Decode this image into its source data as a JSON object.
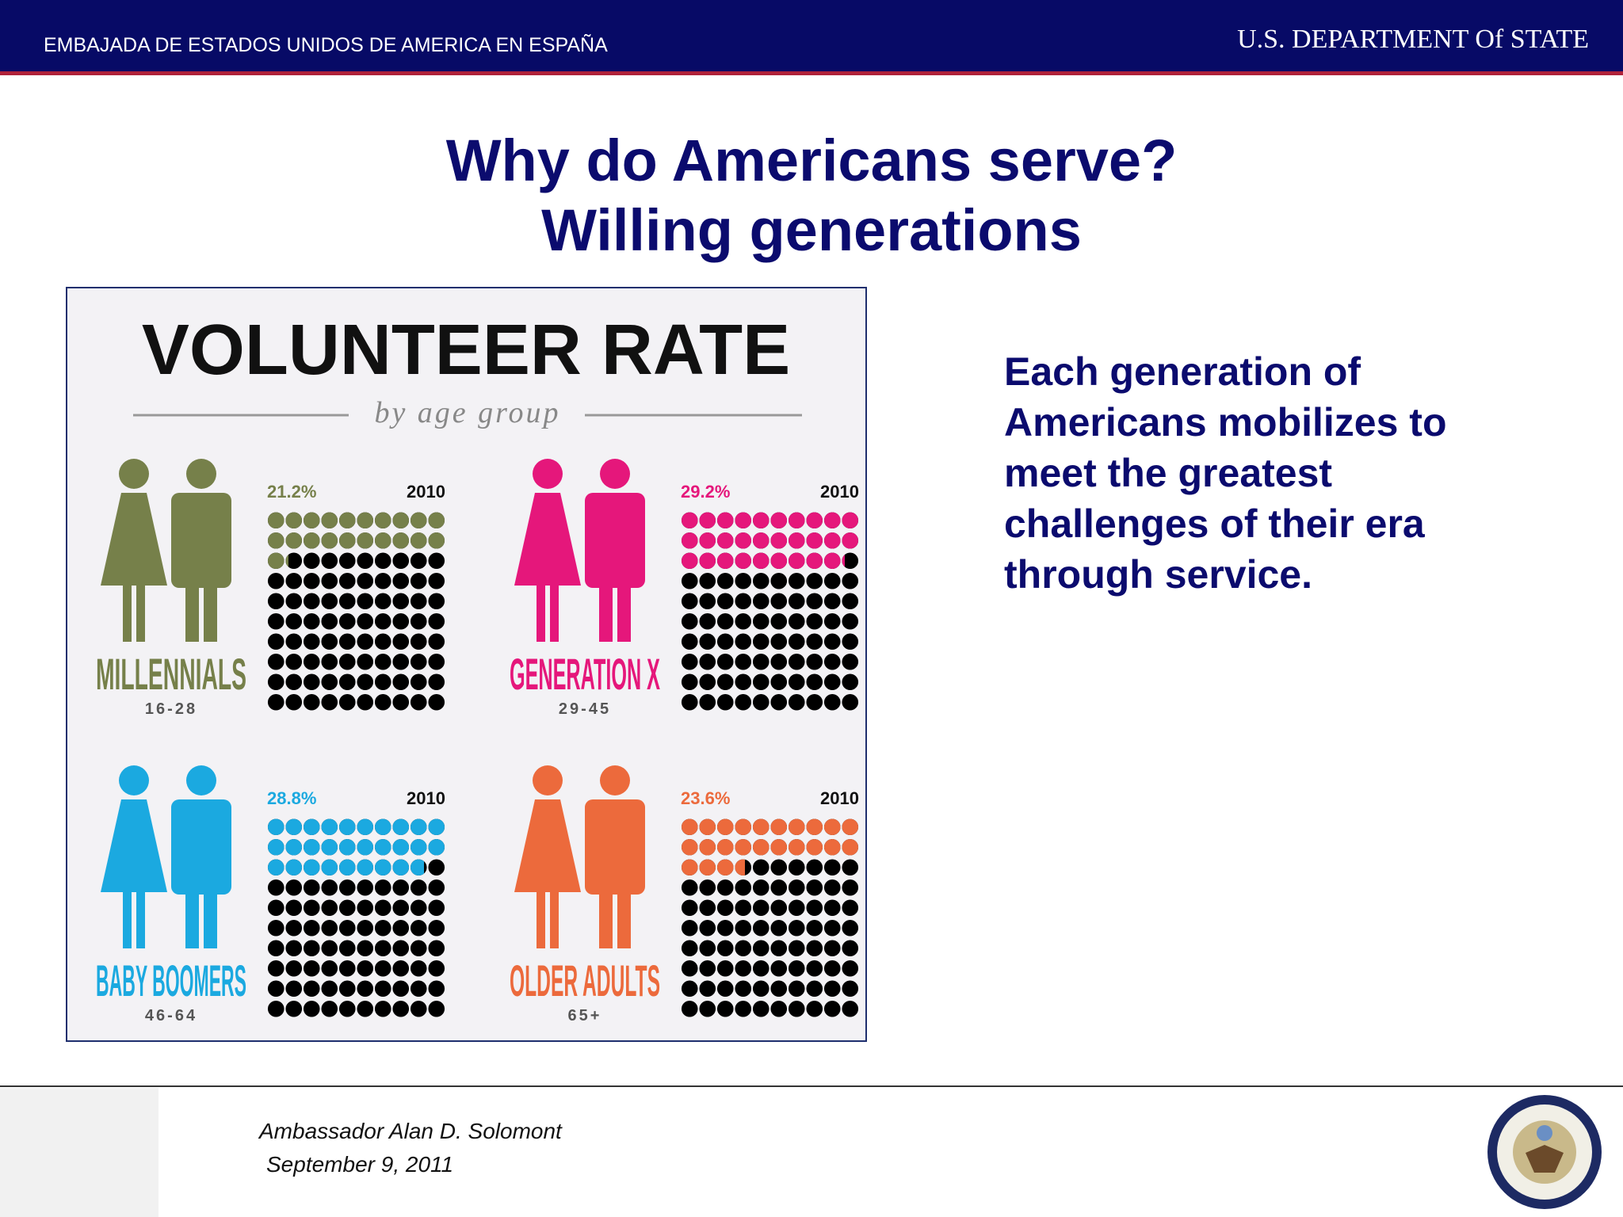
{
  "header": {
    "embassy": "EMBAJADA DE ESTADOS UNIDOS DE AMERICA EN ESPAÑA",
    "department": "U.S. DEPARTMENT Of STATE"
  },
  "title": [
    "Why do Americans serve?",
    "Willing generations"
  ],
  "infographic": {
    "title": "VOLUNTEER RATE",
    "subtitle": "by age group",
    "groups": [
      {
        "name": "MILLENNIALS",
        "ages": "16-28",
        "value": 21.2,
        "value_label": "21.2%",
        "year": "2010",
        "color": "#76804a"
      },
      {
        "name": "GENERATION X",
        "ages": "29-45",
        "value": 29.2,
        "value_label": "29.2%",
        "year": "2010",
        "color": "#e5177b"
      },
      {
        "name": "BABY BOOMERS",
        "ages": "46-64",
        "value": 28.8,
        "value_label": "28.8%",
        "year": "2010",
        "color": "#1ba9e0"
      },
      {
        "name": "OLDER ADULTS",
        "ages": "65+",
        "value": 23.6,
        "value_label": "23.6%",
        "year": "2010",
        "color": "#ec6a3c"
      }
    ]
  },
  "body": [
    "Each generation of",
    "Americans mobilizes to",
    "meet the greatest",
    "challenges of their era",
    "through service."
  ],
  "footer": {
    "speaker": "Ambassador Alan D. Solomont",
    "date": "September 9, 2011"
  }
}
